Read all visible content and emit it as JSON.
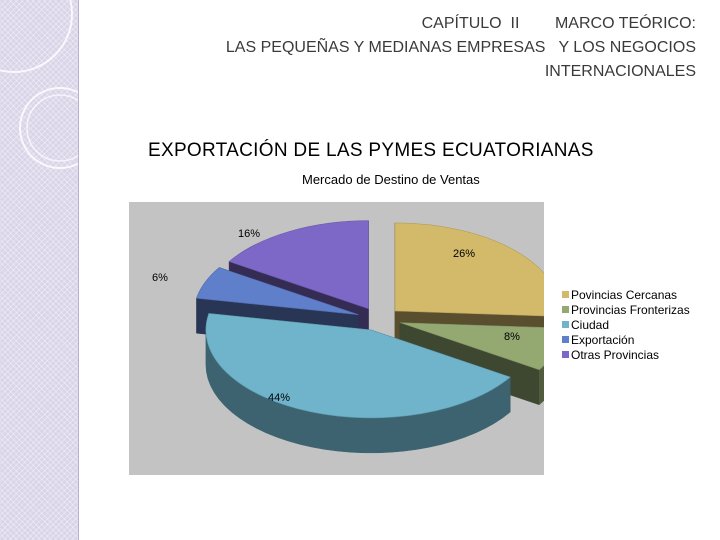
{
  "header": {
    "line1": "CAPÍTULO  II        MARCO TEÓRICO:",
    "line2": "LAS PEQUEÑAS Y MEDIANAS EMPRESAS   Y LOS NEGOCIOS",
    "line3": "INTERNACIONALES"
  },
  "slide_title": "EXPORTACIÓN DE LAS PYMES ECUATORIANAS",
  "chart_data": {
    "type": "pie",
    "style": "3d-exploded",
    "title": "Mercado de Destino de Ventas",
    "legend_position": "right",
    "slices": [
      {
        "name": "Povincias Cercanas",
        "value": 26,
        "label": "26%",
        "color": "#d3ba6b"
      },
      {
        "name": "Provincias Fronterizas",
        "value": 8,
        "label": "8%",
        "color": "#94a872"
      },
      {
        "name": "Ciudad",
        "value": 44,
        "label": "44%",
        "color": "#6fb4cb"
      },
      {
        "name": "Exportación",
        "value": 6,
        "label": "6%",
        "color": "#5f7fcb"
      },
      {
        "name": "Otras Provincias",
        "value": 16,
        "label": "16%",
        "color": "#7d68c8"
      }
    ]
  }
}
